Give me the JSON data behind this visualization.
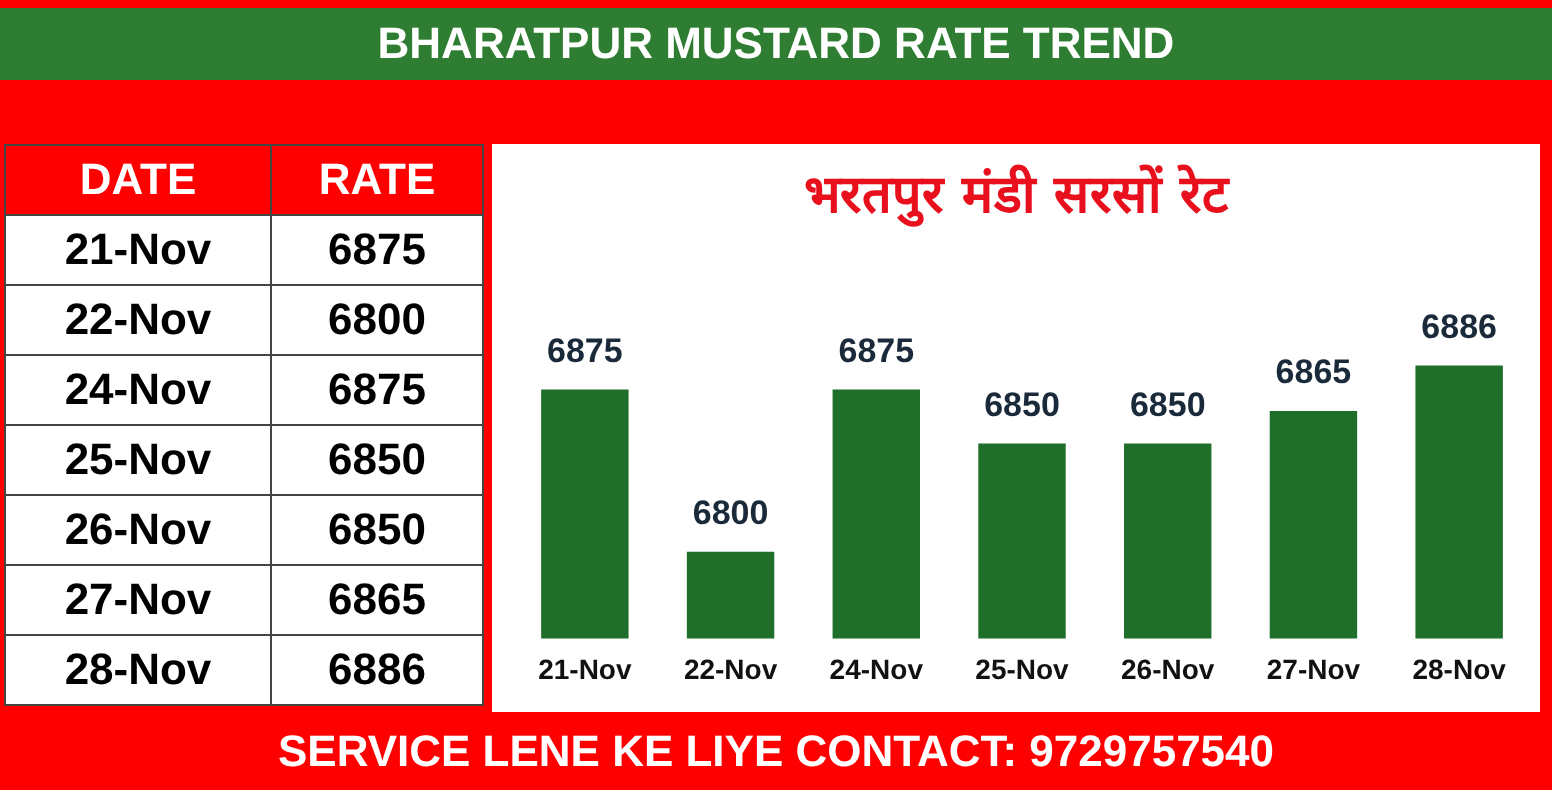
{
  "chart_data": [
    {
      "type": "other",
      "annotations": [
        "DATE",
        "RATE"
      ],
      "categories": [
        "21-Nov",
        "22-Nov",
        "24-Nov",
        "25-Nov",
        "26-Nov",
        "27-Nov",
        "28-Nov"
      ],
      "values": [
        6875,
        6800,
        6875,
        6850,
        6850,
        6865,
        6886
      ],
      "data_labels": true
    },
    {
      "type": "bar",
      "title": "BHARATPUR MUSTARD RATE TREND",
      "subtitle": "भरतपुर मंडी सरसों रेट",
      "categories": [
        "21-Nov",
        "22-Nov",
        "24-Nov",
        "25-Nov",
        "26-Nov",
        "27-Nov",
        "28-Nov"
      ],
      "values": [
        6875,
        6800,
        6875,
        6850,
        6850,
        6865,
        6886
      ],
      "color": "#1f6f2a",
      "data_labels": true,
      "grid": false,
      "legend": false,
      "annotations": [
        "SERVICE LENE KE LIYE CONTACT: 9729757540"
      ]
    }
  ]
}
